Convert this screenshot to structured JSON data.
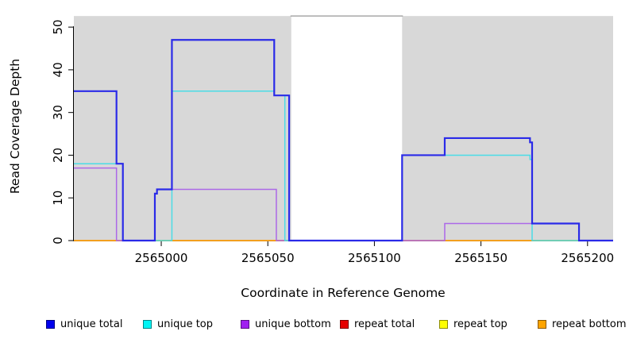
{
  "chart_data": {
    "type": "line",
    "subtype": "step",
    "title": "",
    "xlabel": "Coordinate in Reference Genome",
    "ylabel": "Read Coverage Depth",
    "xlim": [
      2564959,
      2565212
    ],
    "ylim": [
      0,
      53
    ],
    "x_ticks": [
      2565000,
      2565050,
      2565100,
      2565150,
      2565200
    ],
    "y_ticks": [
      0,
      10,
      20,
      30,
      40,
      50
    ],
    "grid": false,
    "legend_position": "bottom",
    "plot_background": "#FFFFFF",
    "shaded_color": "#D8D8D8",
    "shaded_regions": [
      {
        "x0": 2564959,
        "x1": 2565061
      },
      {
        "x0": 2565113,
        "x1": 2565212
      }
    ],
    "gap_top_line": {
      "x0": 2565061,
      "x1": 2565113,
      "y": 52.6,
      "color": "#979797"
    },
    "draw_order": [
      3,
      4,
      5,
      2,
      1,
      0
    ],
    "series": [
      {
        "name": "unique total",
        "swatch_color": "#0000EE",
        "line_color": "#2A2AE8",
        "line_width": 2.2,
        "points": [
          [
            2564959,
            35
          ],
          [
            2564979,
            18
          ],
          [
            2564982,
            0
          ],
          [
            2564997,
            11
          ],
          [
            2564998,
            12
          ],
          [
            2565005,
            47
          ],
          [
            2565053,
            34
          ],
          [
            2565060,
            0
          ],
          [
            2565113,
            20
          ],
          [
            2565133,
            24
          ],
          [
            2565173,
            23
          ],
          [
            2565174,
            4
          ],
          [
            2565196,
            0
          ]
        ]
      },
      {
        "name": "unique top",
        "swatch_color": "#00F5F5",
        "line_color": "#4ADCE6",
        "line_width": 1.5,
        "points": [
          [
            2564959,
            18
          ],
          [
            2564982,
            0
          ],
          [
            2565005,
            35
          ],
          [
            2565053,
            34
          ],
          [
            2565058,
            0
          ],
          [
            2565113,
            20
          ],
          [
            2565173,
            19
          ],
          [
            2565174,
            0
          ]
        ]
      },
      {
        "name": "unique bottom",
        "swatch_color": "#A020F0",
        "line_color": "#AC68E8",
        "line_width": 1.5,
        "points": [
          [
            2564959,
            17
          ],
          [
            2564979,
            0
          ],
          [
            2564997,
            11
          ],
          [
            2564998,
            12
          ],
          [
            2565054,
            0
          ],
          [
            2565133,
            4
          ],
          [
            2565196,
            0
          ]
        ]
      },
      {
        "name": "repeat total",
        "swatch_color": "#E60000",
        "line_color": "#DD3333",
        "line_width": 1.5,
        "points": [
          [
            2564959,
            0
          ]
        ]
      },
      {
        "name": "repeat top",
        "swatch_color": "#FFFF00",
        "line_color": "#F0F000",
        "line_width": 1.5,
        "points": [
          [
            2564959,
            0
          ]
        ]
      },
      {
        "name": "repeat bottom",
        "swatch_color": "#FFA500",
        "line_color": "#FF9E1B",
        "line_width": 1.5,
        "points": [
          [
            2564959,
            0
          ]
        ]
      }
    ]
  }
}
